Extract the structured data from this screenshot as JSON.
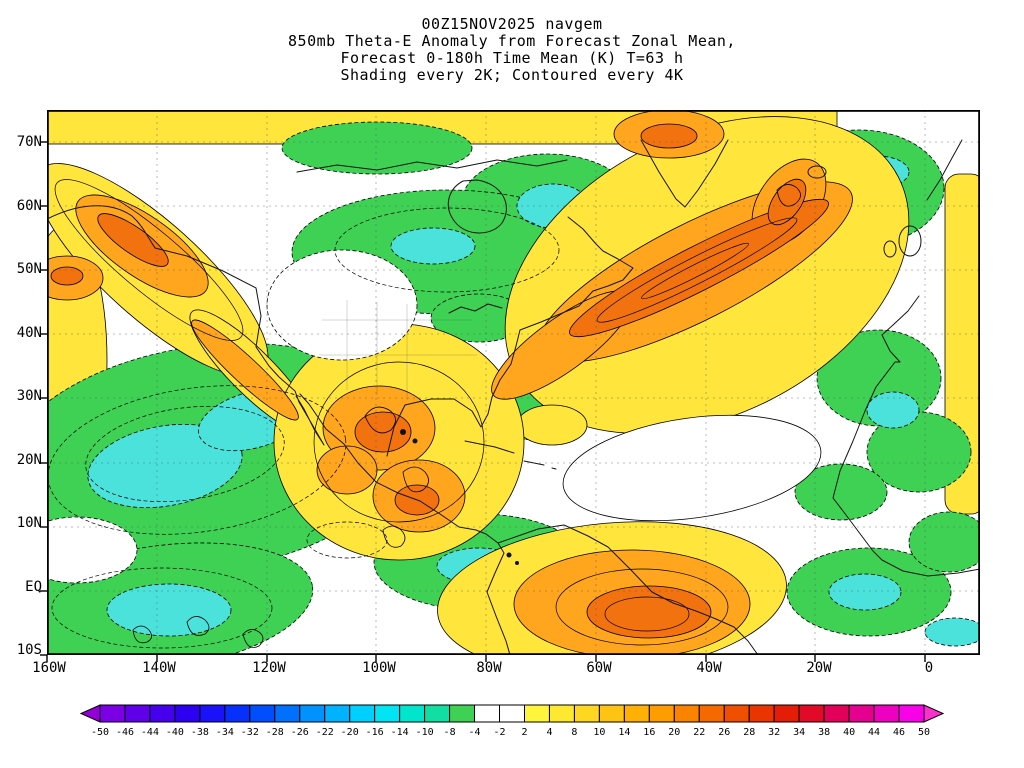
{
  "header": {
    "line1": "00Z15NOV2025 navgem",
    "line2": "850mb Theta-E Anomaly from Forecast Zonal Mean,",
    "line3": "Forecast 0-180h Time Mean (K) T=63 h",
    "line4": "Shading every 2K; Contoured every 4K"
  },
  "axes": {
    "lat_labels": [
      "70N",
      "60N",
      "50N",
      "40N",
      "30N",
      "20N",
      "10N",
      "EQ",
      "10S"
    ],
    "lon_labels": [
      "160W",
      "140W",
      "120W",
      "100W",
      "80W",
      "60W",
      "40W",
      "20W",
      "0"
    ]
  },
  "palette": {
    "green": "#3ED154",
    "cyan": "#4CE2DC",
    "yellow": "#FFE53C",
    "orange": "#FFA51E",
    "dark_orange": "#F1720E",
    "white": "#FFFFFF"
  },
  "colorbar": {
    "tick_labels": [
      "-50",
      "-46",
      "-44",
      "-40",
      "-38",
      "-34",
      "-32",
      "-28",
      "-26",
      "-22",
      "-20",
      "-16",
      "-14",
      "-10",
      "-8",
      "-4",
      "-2",
      "2",
      "4",
      "8",
      "10",
      "14",
      "16",
      "20",
      "22",
      "26",
      "28",
      "32",
      "34",
      "38",
      "40",
      "44",
      "46",
      "50"
    ],
    "cell_colors": [
      "#7C00E6",
      "#6000EA",
      "#4600EE",
      "#2D00F2",
      "#1A12F8",
      "#0830FC",
      "#004EFF",
      "#0070FF",
      "#0092FF",
      "#00B2FF",
      "#00D0FF",
      "#00E4F4",
      "#00E6CE",
      "#10DEA2",
      "#3ED154",
      "#FFFFFF",
      "#FFFFFF",
      "#FFF63C",
      "#FFE830",
      "#FFD620",
      "#FFC312",
      "#FFB004",
      "#FF9C00",
      "#FA8300",
      "#F56900",
      "#F04F00",
      "#EB3500",
      "#E61D06",
      "#E20A28",
      "#E20058",
      "#E60090",
      "#EE00C0",
      "#F800E8"
    ],
    "left_arrow_color": "#9600D8",
    "right_arrow_color": "#FC30CC"
  },
  "chart_data": {
    "type": "heatmap",
    "title": "850mb Theta-E Anomaly from Forecast Zonal Mean, Forecast 0-180h Time Mean (K)",
    "model": "navgem",
    "init_time": "00Z15NOV2025",
    "forecast_period": "0-180h Time Mean",
    "T_hours": 63,
    "units": "K",
    "shading_interval_K": 2,
    "contour_interval_K": 4,
    "x_axis": {
      "label": "longitude",
      "ticks": [
        "160W",
        "140W",
        "120W",
        "100W",
        "80W",
        "60W",
        "40W",
        "20W",
        "0"
      ],
      "range": [
        "160W",
        "10E"
      ]
    },
    "y_axis": {
      "label": "latitude",
      "ticks": [
        "70N",
        "60N",
        "50N",
        "40N",
        "30N",
        "20N",
        "10N",
        "EQ",
        "10S"
      ],
      "range": [
        "10S",
        "75N"
      ]
    },
    "colorbar_levels_K": [
      -50,
      -46,
      -44,
      -40,
      -38,
      -34,
      -32,
      -28,
      -26,
      -22,
      -20,
      -16,
      -14,
      -10,
      -8,
      -4,
      -2,
      2,
      4,
      8,
      10,
      14,
      16,
      20,
      22,
      26,
      28,
      32,
      34,
      38,
      40,
      44,
      46,
      50
    ],
    "anomaly_features": [
      {
        "location": "Gulf of Alaska ~55N 145W",
        "sign": "positive",
        "approx_peak_K": "+14 to +22"
      },
      {
        "location": "Far west edge ~50N 158W",
        "sign": "positive",
        "approx_peak_K": "+14 to +20"
      },
      {
        "location": "Band from Alaska southeast to Baja ~30N 115W",
        "sign": "positive",
        "approx_peak_K": "+6 to +14"
      },
      {
        "location": "Subtropical NE Pacific 10-35N 155-105W",
        "sign": "negative",
        "approx_peak_K": "-10 to -18"
      },
      {
        "location": "Central Canada / Hudson Bay / Quebec 45-68N 105-60W",
        "sign": "negative",
        "approx_peak_K": "-8 to -14"
      },
      {
        "location": "North Atlantic storm-track plume from 35N 75W to 62N 28W",
        "sign": "positive",
        "approx_peak_K": "+18 to +30"
      },
      {
        "location": "Mexico / Central America 10-35N 105-85W",
        "sign": "positive",
        "approx_peak_K": "+10 to +22"
      },
      {
        "location": "Florida / Bahamas 22-32N 82-65W",
        "sign": "negative",
        "approx_peak_K": "-4 to -10"
      },
      {
        "location": "Tropical east Pacific / NW South America ITCZ 5S-10N 100-70W",
        "sign": "negative",
        "approx_peak_K": "-8 to -14"
      },
      {
        "location": "Tropical South America / west Atlantic 10S-5N 70-35W",
        "sign": "positive",
        "approx_peak_K": "+10 to +20"
      },
      {
        "location": "Eastern Atlantic and Europe 30-70N 25W-0",
        "sign": "negative",
        "approx_peak_K": "-6 to -12"
      },
      {
        "location": "Equatorial central Pacific bottom-left 10S-5N 160-120W",
        "sign": "negative",
        "approx_peak_K": "-8 to -16"
      },
      {
        "location": "Greenland vicinity ~70N 55W",
        "sign": "positive",
        "approx_peak_K": "+10 to +18"
      }
    ]
  }
}
